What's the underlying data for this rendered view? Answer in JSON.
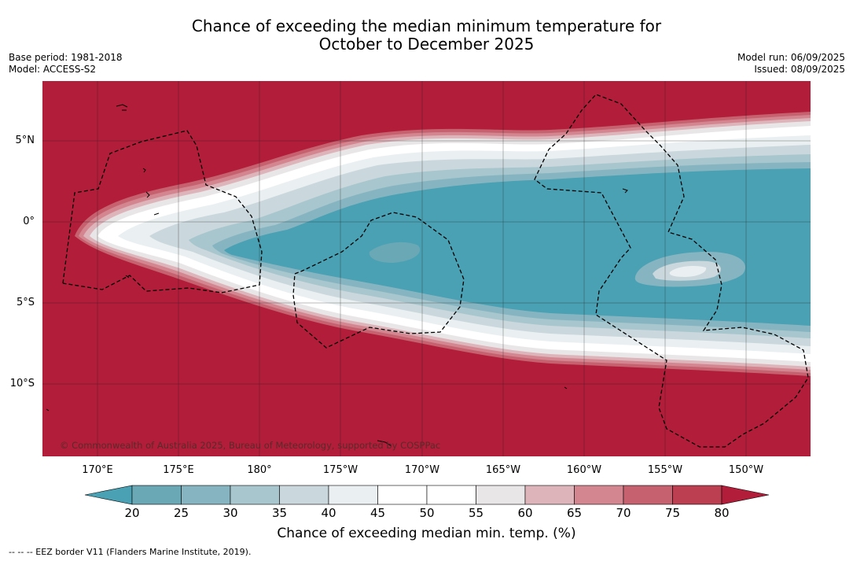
{
  "title_line1": "Chance of exceeding the median minimum temperature for",
  "title_line2": "October to December 2025",
  "base_period": "Base period: 1981-2018",
  "model": "Model: ACCESS-S2",
  "model_run": "Model run: 06/09/2025",
  "issued": "Issued: 08/09/2025",
  "copyright": "© Commonwealth of Australia 2025, Bureau of Meteorology, supported by COSPPac",
  "lat_labels": [
    "5°N",
    "0°",
    "5°S",
    "10°S"
  ],
  "lon_labels": [
    "170°E",
    "175°E",
    "180°",
    "175°W",
    "170°W",
    "165°W",
    "160°W",
    "155°W",
    "150°W"
  ],
  "colorbar": {
    "title": "Chance of exceeding median min. temp. (%)",
    "ticks": [
      "20",
      "25",
      "30",
      "35",
      "40",
      "45",
      "50",
      "55",
      "60",
      "65",
      "70",
      "75",
      "80"
    ],
    "colors": [
      "#6ba8b6",
      "#86b5c1",
      "#a8c6cd",
      "#cad7dc",
      "#eaeff1",
      "#ffffff",
      "#ffffff",
      "#e9e6e7",
      "#ddb4ba",
      "#d3868f",
      "#c66170",
      "#bc3e51"
    ],
    "under_color": "#4aa1b3",
    "over_color": "#b21d3a"
  },
  "eez_note": "-- -- -- EEZ border V11 (Flanders Marine Institute, 2019)."
}
